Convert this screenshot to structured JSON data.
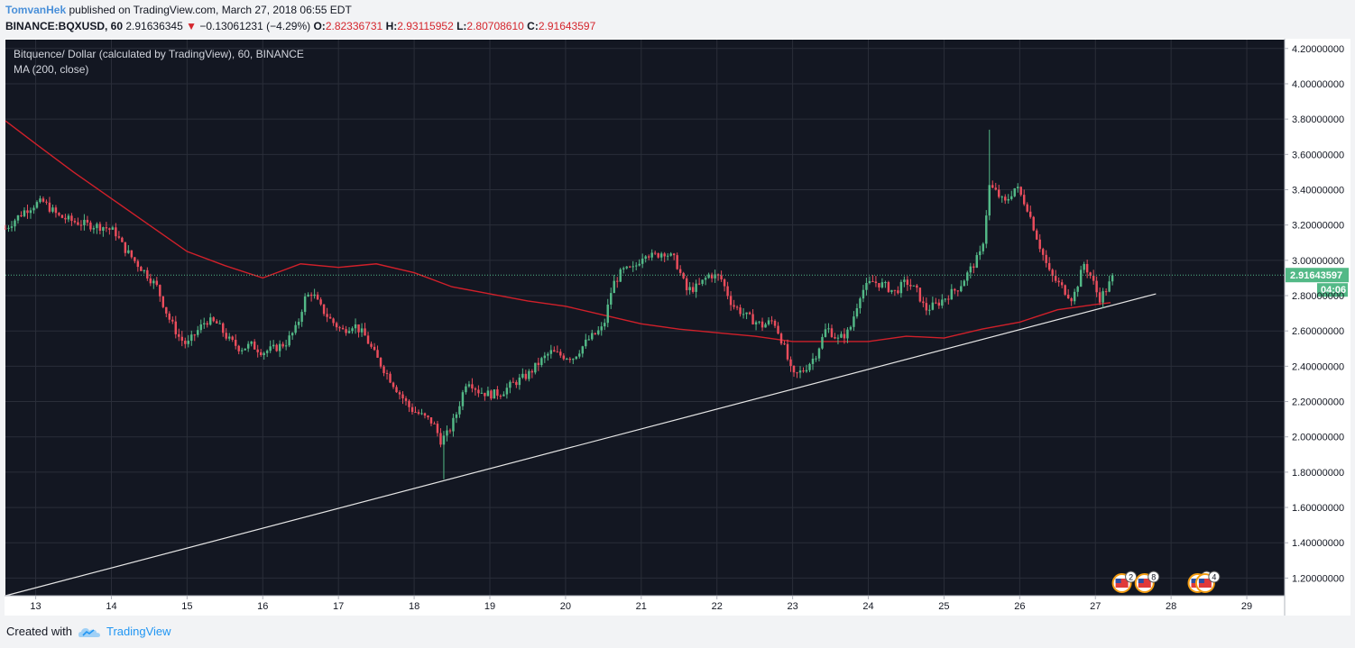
{
  "header": {
    "author": "TomvanHek",
    "published_text": "published on TradingView.com, March 27, 2018 06:55 EDT"
  },
  "symbol_bar": {
    "symbol": "BINANCE:BQXUSD, 60",
    "last": "2.91636345",
    "change_arrow": "▼",
    "change": "−0.13061231 (−4.29%)",
    "open_label": "O:",
    "open": "2.82336731",
    "high_label": "H:",
    "high": "2.93115952",
    "low_label": "L:",
    "low": "2.80708610",
    "close_label": "C:",
    "close": "2.91643597"
  },
  "legend": {
    "title": "Bitquence/ Dollar (calculated by TradingView), 60, BINANCE",
    "indicator": "MA (200, close)"
  },
  "footer": {
    "created_with": "Created with",
    "brand": "TradingView"
  },
  "chart_data": {
    "type": "candlestick",
    "interval": "60",
    "colors": {
      "background": "#131722",
      "grid": "#2a2e39",
      "up": "#53b987",
      "down": "#eb4d5c",
      "ma": "#d0202a",
      "trendline": "#e6e6e6",
      "price_tag": "#53b987",
      "axis_text": "#131722"
    },
    "y_axis": {
      "ylim": [
        1.1,
        4.25
      ],
      "ticks": [
        "1.20000000",
        "1.40000000",
        "1.60000000",
        "1.80000000",
        "2.00000000",
        "2.20000000",
        "2.40000000",
        "2.60000000",
        "2.80000000",
        "3.00000000",
        "3.20000000",
        "3.40000000",
        "3.60000000",
        "3.80000000",
        "4.00000000",
        "4.20000000"
      ]
    },
    "x_axis": {
      "xlim": [
        12.6,
        29.5
      ],
      "ticks": [
        "13",
        "14",
        "15",
        "16",
        "17",
        "18",
        "19",
        "20",
        "21",
        "22",
        "23",
        "24",
        "25",
        "26",
        "27",
        "28",
        "29"
      ]
    },
    "last_price": "2.91643597",
    "countdown": "04:06",
    "price_path": [
      [
        12.6,
        3.18
      ],
      [
        12.7,
        3.22
      ],
      [
        12.85,
        3.28
      ],
      [
        13.0,
        3.32
      ],
      [
        13.1,
        3.33
      ],
      [
        13.3,
        3.25
      ],
      [
        13.5,
        3.22
      ],
      [
        13.7,
        3.2
      ],
      [
        13.9,
        3.19
      ],
      [
        14.05,
        3.16
      ],
      [
        14.15,
        3.08
      ],
      [
        14.3,
        3.0
      ],
      [
        14.45,
        2.93
      ],
      [
        14.6,
        2.85
      ],
      [
        14.75,
        2.68
      ],
      [
        14.9,
        2.56
      ],
      [
        15.0,
        2.52
      ],
      [
        15.1,
        2.58
      ],
      [
        15.25,
        2.66
      ],
      [
        15.4,
        2.64
      ],
      [
        15.55,
        2.55
      ],
      [
        15.7,
        2.5
      ],
      [
        15.85,
        2.52
      ],
      [
        16.0,
        2.48
      ],
      [
        16.15,
        2.5
      ],
      [
        16.3,
        2.53
      ],
      [
        16.45,
        2.62
      ],
      [
        16.55,
        2.78
      ],
      [
        16.65,
        2.82
      ],
      [
        16.75,
        2.74
      ],
      [
        16.9,
        2.66
      ],
      [
        17.05,
        2.6
      ],
      [
        17.2,
        2.64
      ],
      [
        17.35,
        2.57
      ],
      [
        17.5,
        2.45
      ],
      [
        17.65,
        2.35
      ],
      [
        17.8,
        2.25
      ],
      [
        17.95,
        2.16
      ],
      [
        18.1,
        2.12
      ],
      [
        18.25,
        2.08
      ],
      [
        18.35,
        1.98
      ],
      [
        18.45,
        2.02
      ],
      [
        18.55,
        2.12
      ],
      [
        18.7,
        2.33
      ],
      [
        18.85,
        2.26
      ],
      [
        19.0,
        2.24
      ],
      [
        19.15,
        2.25
      ],
      [
        19.3,
        2.3
      ],
      [
        19.5,
        2.35
      ],
      [
        19.65,
        2.42
      ],
      [
        19.8,
        2.48
      ],
      [
        19.95,
        2.46
      ],
      [
        20.1,
        2.45
      ],
      [
        20.3,
        2.55
      ],
      [
        20.5,
        2.62
      ],
      [
        20.62,
        2.86
      ],
      [
        20.75,
        2.94
      ],
      [
        20.9,
        2.95
      ],
      [
        21.05,
        3.05
      ],
      [
        21.15,
        3.02
      ],
      [
        21.3,
        3.05
      ],
      [
        21.45,
        3.0
      ],
      [
        21.6,
        2.83
      ],
      [
        21.75,
        2.85
      ],
      [
        21.9,
        2.92
      ],
      [
        22.05,
        2.9
      ],
      [
        22.2,
        2.75
      ],
      [
        22.4,
        2.68
      ],
      [
        22.6,
        2.63
      ],
      [
        22.75,
        2.66
      ],
      [
        22.88,
        2.52
      ],
      [
        23.0,
        2.34
      ],
      [
        23.15,
        2.38
      ],
      [
        23.3,
        2.46
      ],
      [
        23.45,
        2.62
      ],
      [
        23.6,
        2.55
      ],
      [
        23.75,
        2.6
      ],
      [
        23.9,
        2.82
      ],
      [
        24.05,
        2.88
      ],
      [
        24.2,
        2.86
      ],
      [
        24.35,
        2.82
      ],
      [
        24.5,
        2.88
      ],
      [
        24.65,
        2.82
      ],
      [
        24.75,
        2.72
      ],
      [
        24.9,
        2.75
      ],
      [
        25.05,
        2.8
      ],
      [
        25.2,
        2.85
      ],
      [
        25.35,
        2.95
      ],
      [
        25.5,
        3.05
      ],
      [
        25.6,
        3.42
      ],
      [
        25.7,
        3.38
      ],
      [
        25.8,
        3.32
      ],
      [
        25.95,
        3.42
      ],
      [
        26.1,
        3.3
      ],
      [
        26.25,
        3.1
      ],
      [
        26.4,
        2.92
      ],
      [
        26.55,
        2.85
      ],
      [
        26.7,
        2.78
      ],
      [
        26.85,
        2.98
      ],
      [
        26.95,
        2.9
      ],
      [
        27.05,
        2.78
      ],
      [
        27.15,
        2.84
      ],
      [
        27.25,
        2.92
      ]
    ],
    "wicks": [
      {
        "x": 25.6,
        "high": 3.74
      },
      {
        "x": 18.4,
        "low": 1.76
      }
    ],
    "ma200": [
      [
        12.6,
        3.79
      ],
      [
        13.0,
        3.66
      ],
      [
        13.5,
        3.5
      ],
      [
        14.0,
        3.35
      ],
      [
        14.5,
        3.2
      ],
      [
        15.0,
        3.05
      ],
      [
        15.5,
        2.97
      ],
      [
        16.0,
        2.9
      ],
      [
        16.5,
        2.98
      ],
      [
        17.0,
        2.96
      ],
      [
        17.5,
        2.98
      ],
      [
        18.0,
        2.93
      ],
      [
        18.5,
        2.85
      ],
      [
        19.0,
        2.81
      ],
      [
        19.5,
        2.77
      ],
      [
        20.0,
        2.74
      ],
      [
        20.5,
        2.69
      ],
      [
        21.0,
        2.64
      ],
      [
        21.5,
        2.61
      ],
      [
        22.0,
        2.59
      ],
      [
        22.5,
        2.57
      ],
      [
        23.0,
        2.54
      ],
      [
        23.5,
        2.54
      ],
      [
        24.0,
        2.54
      ],
      [
        24.5,
        2.57
      ],
      [
        25.0,
        2.56
      ],
      [
        25.5,
        2.61
      ],
      [
        26.0,
        2.65
      ],
      [
        26.5,
        2.72
      ],
      [
        27.0,
        2.75
      ],
      [
        27.2,
        2.76
      ]
    ],
    "trendline": [
      [
        12.6,
        1.1
      ],
      [
        27.8,
        2.81
      ]
    ],
    "event_markers": [
      {
        "x": 27.35,
        "count": "2"
      },
      {
        "x": 27.65,
        "count": "8"
      },
      {
        "x": 28.35,
        "count": "5"
      },
      {
        "x": 28.45,
        "count": "4"
      }
    ]
  }
}
